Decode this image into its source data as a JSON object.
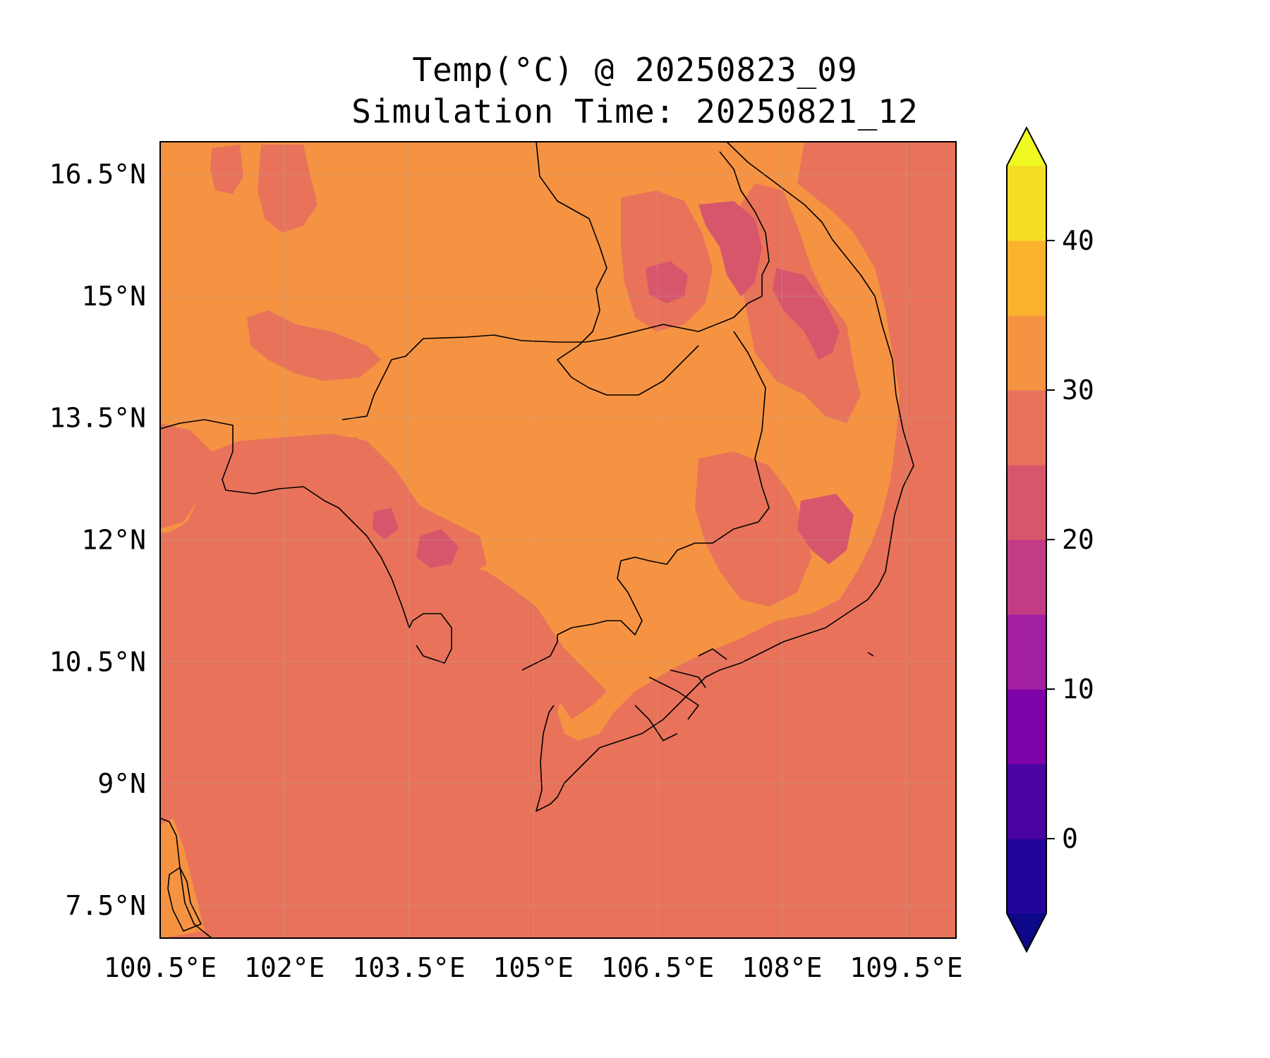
{
  "title": "Temp(°C) @ 20250823_09",
  "subtitle": "Simulation Time: 20250821_12",
  "map": {
    "lon_ticks": [
      "100.5°E",
      "102°E",
      "103.5°E",
      "105°E",
      "106.5°E",
      "108°E",
      "109.5°E"
    ],
    "lat_ticks": [
      "16.5°N",
      "15°N",
      "13.5°N",
      "12°N",
      "10.5°N",
      "9°N",
      "7.5°N"
    ],
    "colors": {
      "sea_background": "#e8735a",
      "land_warm": "#f59342",
      "cool_patch": "#d8566c",
      "coastline": "#000000"
    }
  },
  "colorbar": {
    "levels": [
      -5,
      0,
      5,
      10,
      15,
      20,
      25,
      30,
      35,
      40,
      45
    ],
    "colors": [
      "#24059a",
      "#4b03a1",
      "#7d03a8",
      "#a21fa1",
      "#c13b85",
      "#d8566c",
      "#e8735a",
      "#f59342",
      "#fdb22f",
      "#f3dd25"
    ],
    "under_color": "#0d0887",
    "over_color": "#f0f921",
    "ticks": [
      "0",
      "10",
      "20",
      "30",
      "40"
    ],
    "extend": "both"
  }
}
